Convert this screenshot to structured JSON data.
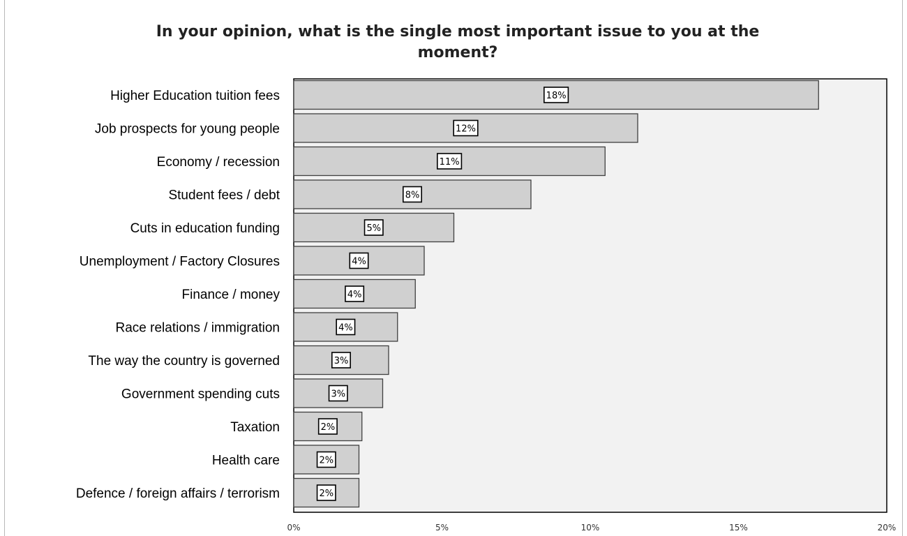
{
  "chart_data": {
    "type": "bar",
    "orientation": "horizontal",
    "title_lines": [
      "In your opinion, what is the single most important issue to you at the",
      "moment?"
    ],
    "categories": [
      "Higher Education tuition fees",
      "Job prospects for young people",
      "Economy / recession",
      "Student fees / debt",
      "Cuts in education funding",
      "Unemployment / Factory Closures",
      "Finance / money",
      "Race relations / immigration",
      "The way the country is governed",
      "Government spending cuts",
      "Taxation",
      "Health care",
      "Defence / foreign affairs / terrorism"
    ],
    "values": [
      17.7,
      11.6,
      10.5,
      8.0,
      5.4,
      4.4,
      4.1,
      3.5,
      3.2,
      3.0,
      2.3,
      2.2,
      2.2
    ],
    "data_labels": [
      "18%",
      "12%",
      "11%",
      "8%",
      "5%",
      "4%",
      "4%",
      "4%",
      "3%",
      "3%",
      "2%",
      "2%",
      "2%"
    ],
    "xlim": [
      0,
      20
    ],
    "x_ticks": [
      0,
      5,
      10,
      15,
      20
    ],
    "x_tick_labels": [
      "0%",
      "5%",
      "10%",
      "15%",
      "20%"
    ],
    "grid": false,
    "legend": "none",
    "colors": {
      "bar_fill": "#d0d0d0",
      "bar_stroke": "#404040",
      "plot_bg": "#f2f2f2",
      "plot_border": "#000000"
    }
  }
}
